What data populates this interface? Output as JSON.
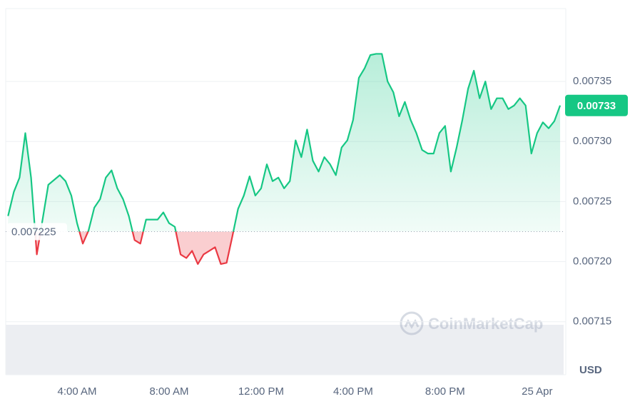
{
  "chart_data": {
    "type": "line",
    "categories": [
      null,
      null,
      null,
      null,
      null,
      null,
      null,
      null,
      null,
      null,
      null,
      null,
      "4:00 AM",
      null,
      null,
      null,
      null,
      null,
      null,
      null,
      null,
      null,
      null,
      null,
      null,
      null,
      null,
      null,
      "8:00 AM",
      null,
      null,
      null,
      null,
      null,
      null,
      null,
      null,
      null,
      null,
      null,
      null,
      null,
      null,
      null,
      "12:00 PM",
      null,
      null,
      null,
      null,
      null,
      null,
      null,
      null,
      null,
      null,
      null,
      null,
      null,
      null,
      null,
      "4:00 PM",
      null,
      null,
      null,
      null,
      null,
      null,
      null,
      null,
      null,
      null,
      null,
      null,
      null,
      null,
      null,
      "8:00 PM",
      null,
      null,
      null,
      null,
      null,
      null,
      null,
      null,
      null,
      null,
      null,
      null,
      null,
      null,
      null,
      "25 Apr",
      null,
      null,
      null,
      null
    ],
    "series": [
      {
        "color": "#16c784",
        "down_color": "#ea3943",
        "values": [
          0.007238,
          0.007258,
          0.00727,
          0.007307,
          0.00727,
          0.007206,
          0.007235,
          0.007264,
          0.007268,
          0.007272,
          0.007267,
          0.007255,
          0.007232,
          0.007215,
          0.007226,
          0.007245,
          0.007252,
          0.00727,
          0.007276,
          0.007261,
          0.007252,
          0.007238,
          0.007218,
          0.007215,
          0.007235,
          0.007235,
          0.007235,
          0.007241,
          0.007232,
          0.007229,
          0.007206,
          0.007203,
          0.007209,
          0.007198,
          0.007206,
          0.007209,
          0.007212,
          0.007198,
          0.007199,
          0.007221,
          0.007244,
          0.007255,
          0.007271,
          0.007255,
          0.007261,
          0.007281,
          0.007267,
          0.00727,
          0.007261,
          0.007267,
          0.007301,
          0.007287,
          0.00731,
          0.007284,
          0.007275,
          0.007287,
          0.007281,
          0.007272,
          0.007295,
          0.007301,
          0.007318,
          0.007353,
          0.007361,
          0.007372,
          0.007373,
          0.007373,
          0.00735,
          0.007341,
          0.007321,
          0.007333,
          0.007318,
          0.007307,
          0.007293,
          0.00729,
          0.00729,
          0.007307,
          0.007313,
          0.007275,
          0.007295,
          0.007318,
          0.007344,
          0.007359,
          0.007336,
          0.00735,
          0.007327,
          0.007336,
          0.007336,
          0.007327,
          0.00733,
          0.007336,
          0.00733,
          0.00729,
          0.007307,
          0.007316,
          0.007311,
          0.007317,
          0.00733
        ]
      }
    ],
    "baseline": 0.007225,
    "ylim": [
      0.00711,
      0.0074
    ],
    "yticks": [
      0.00715,
      {
        "value": 0.0072,
        "label": "0.00720"
      },
      0.00725,
      {
        "value": 0.0073,
        "label": "0.00730"
      },
      0.00735
    ],
    "grid": true,
    "unit_label": "USD",
    "watermark": "CoinMarketCap"
  }
}
